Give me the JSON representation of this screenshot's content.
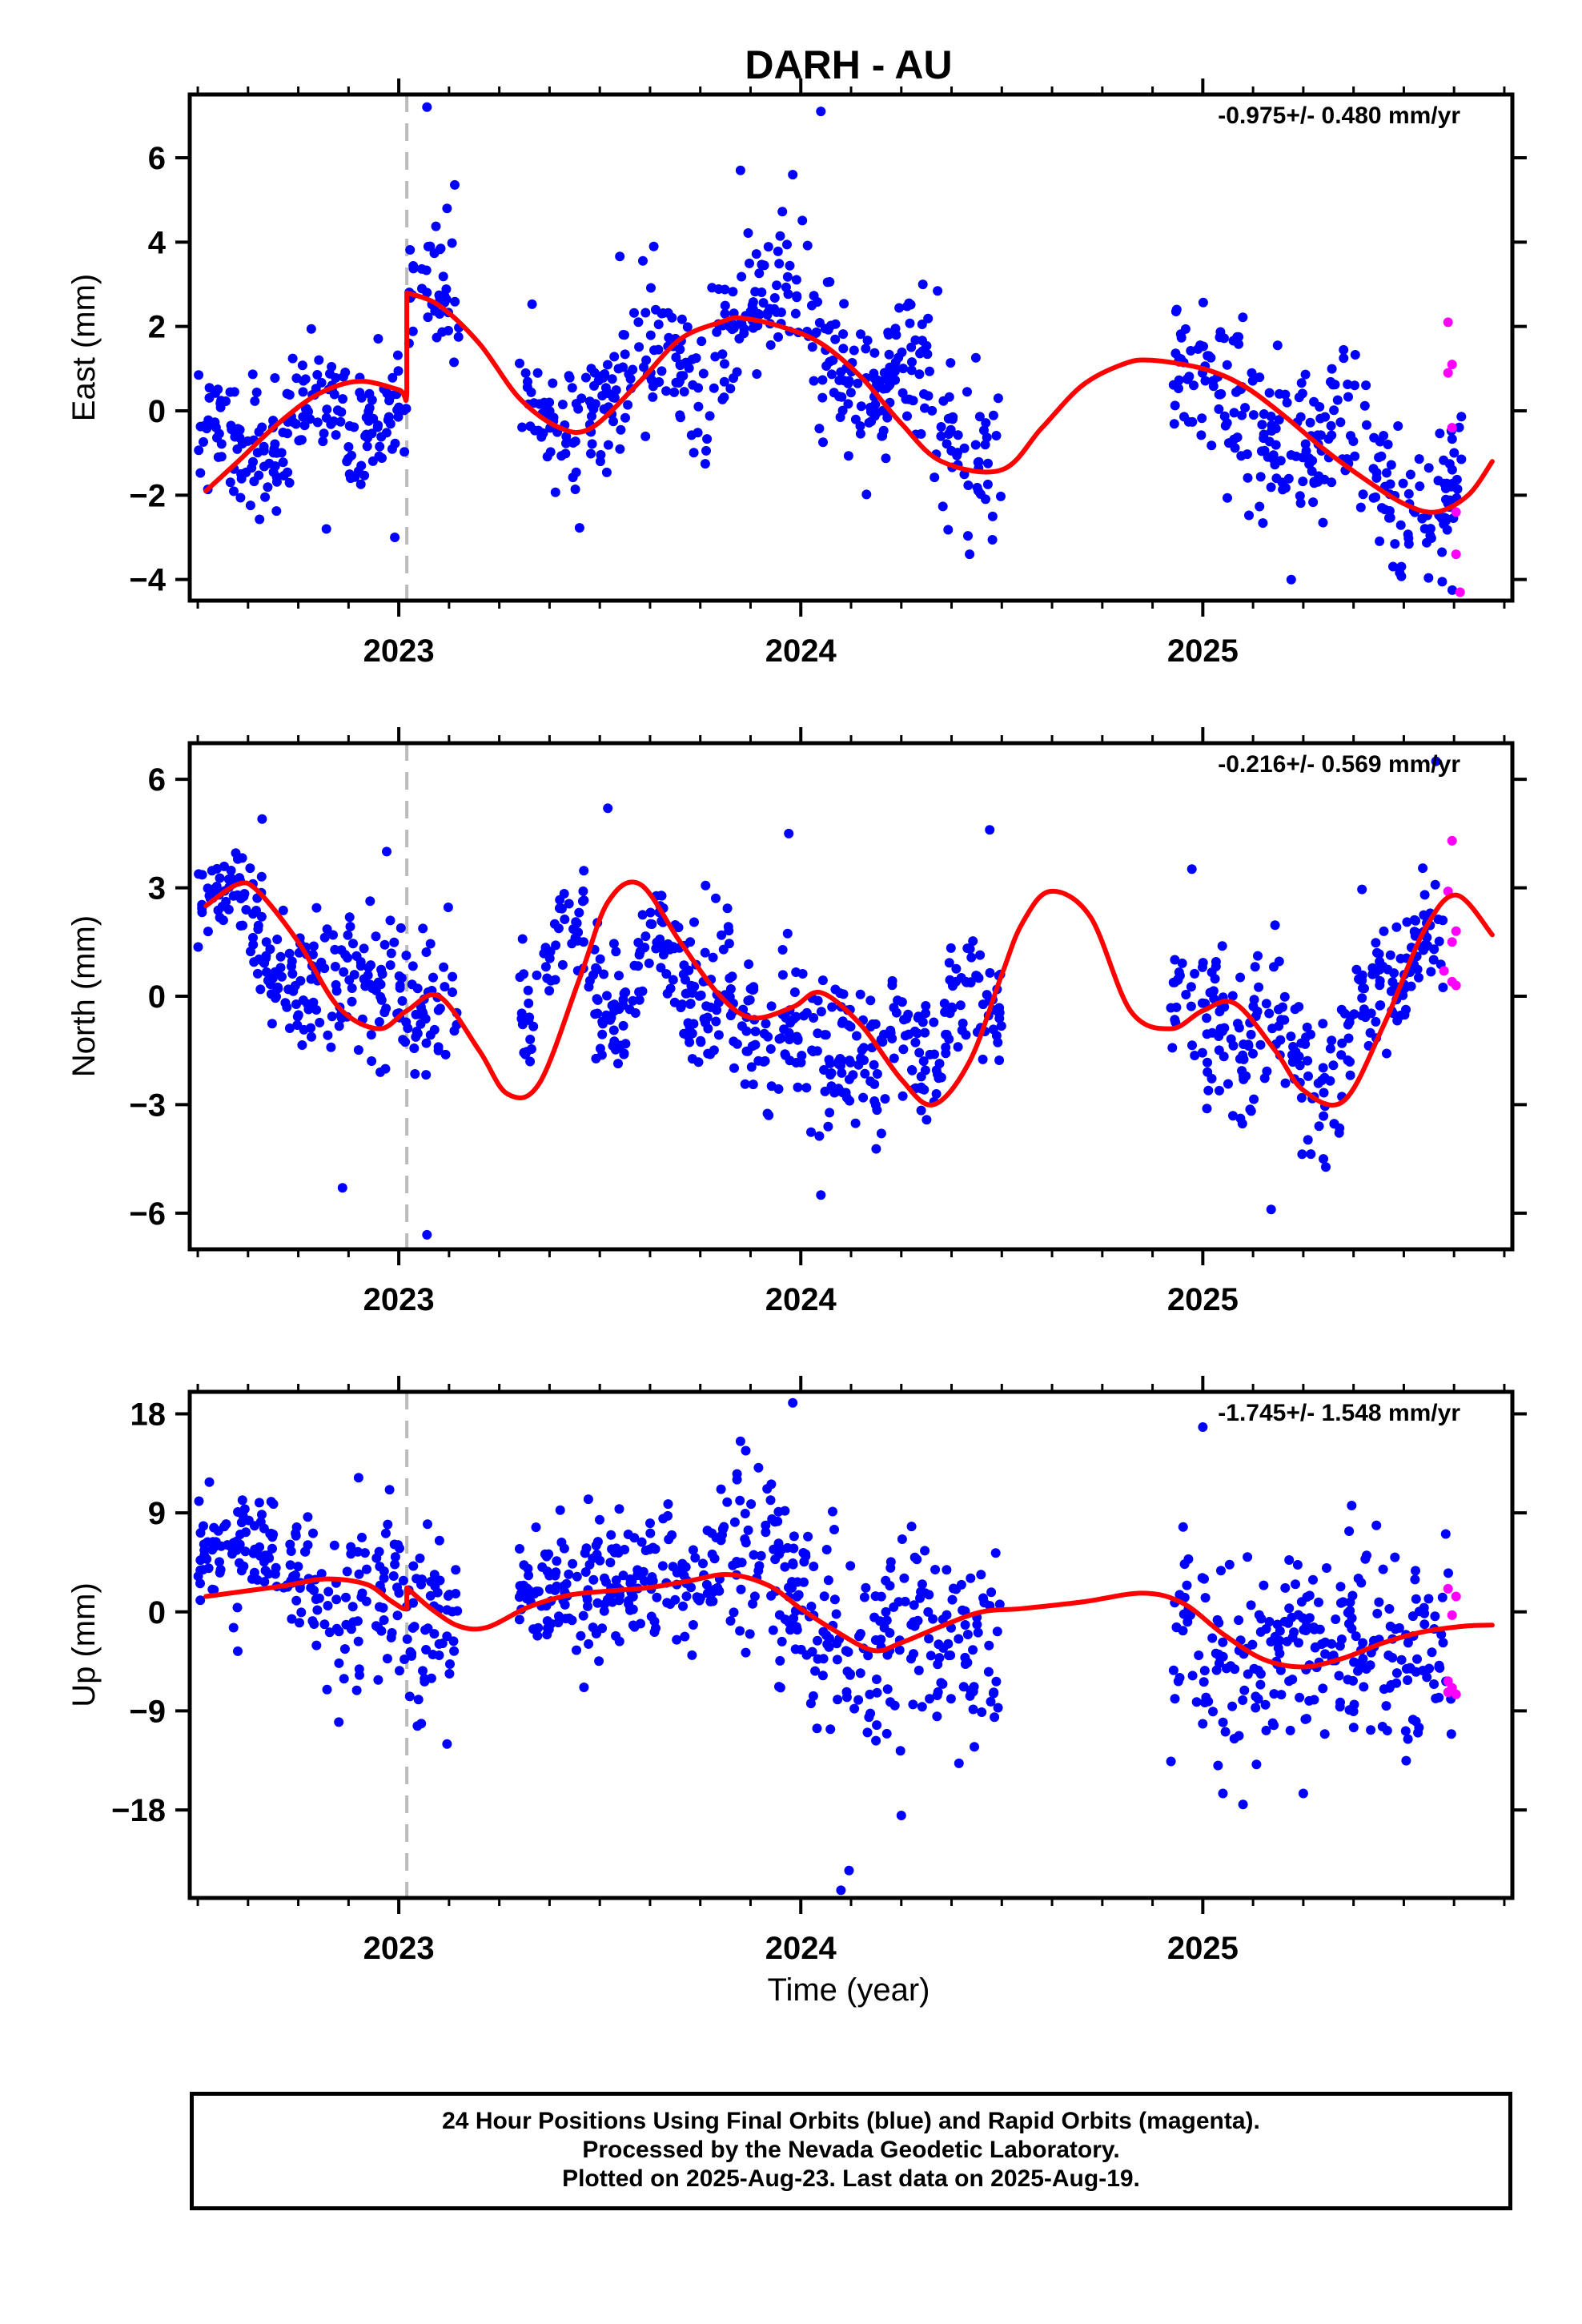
{
  "title": "DARH - AU",
  "colors": {
    "final": "#0000ff",
    "rapid": "#ff00ff",
    "model": "#ff0000",
    "equipment_change": "#bbbbbb"
  },
  "xlabel": "Time (year)",
  "footer": {
    "line1": "24 Hour Positions Using Final Orbits (blue) and Rapid Orbits (magenta).",
    "line2": "Processed by the Nevada Geodetic Laboratory.",
    "line3": "Plotted on 2025-Aug-23. Last data on 2025-Aug-19."
  },
  "chart_data": [
    {
      "type": "scatter",
      "component": "east",
      "ylabel": "East (mm)",
      "rate_label": "-0.975+/- 0.480 mm/yr",
      "xlim": [
        2022.48,
        2025.77
      ],
      "ylim": [
        -4.5,
        7.5
      ],
      "yticks": [
        -4,
        -2,
        0,
        2,
        4,
        6
      ],
      "ytick_labels": [
        "−4",
        "−2",
        "0",
        "2",
        "4",
        "6"
      ],
      "xticks": [
        2023,
        2024,
        2025
      ],
      "xtick_labels": [
        "2023",
        "2024",
        "2025"
      ],
      "equipment_change": 2023.02,
      "model_x": [
        2022.52,
        2022.6,
        2022.7,
        2022.8,
        2022.9,
        2023.0,
        2023.02,
        2023.02,
        2023.1,
        2023.2,
        2023.3,
        2023.4,
        2023.48,
        2023.6,
        2023.7,
        2023.8,
        2023.85,
        2023.95,
        2024.05,
        2024.15,
        2024.25,
        2024.35,
        2024.5,
        2024.6,
        2024.7,
        2024.8,
        2024.87,
        2025.0,
        2025.1,
        2025.2,
        2025.3,
        2025.4,
        2025.5,
        2025.58,
        2025.66,
        2025.72
      ],
      "model_y": [
        -1.9,
        -1.2,
        -0.3,
        0.4,
        0.7,
        0.5,
        0.4,
        2.8,
        2.5,
        1.6,
        0.3,
        -0.4,
        -0.4,
        0.7,
        1.7,
        2.1,
        2.2,
        2.0,
        1.6,
        0.8,
        -0.3,
        -1.2,
        -1.4,
        -0.4,
        0.6,
        1.1,
        1.2,
        1.0,
        0.6,
        -0.1,
        -0.9,
        -1.6,
        -2.2,
        -2.4,
        -2.0,
        -1.2
      ],
      "segments": [
        {
          "x0": 2022.5,
          "x1": 2023.02,
          "amp": 1.2,
          "phase": 0.6,
          "center": -0.4,
          "trend": 2.2,
          "noise": 0.75,
          "n": 190
        },
        {
          "x0": 2023.02,
          "x1": 2023.15,
          "amp": 0.5,
          "phase": 0.0,
          "center": 2.8,
          "trend": -2.5,
          "noise": 1.1,
          "n": 40
        },
        {
          "x0": 2023.3,
          "x1": 2023.92,
          "amp": 1.4,
          "phase": 1.6,
          "center": 0.8,
          "trend": 4.0,
          "noise": 0.85,
          "n": 220
        },
        {
          "x0": 2023.92,
          "x1": 2024.5,
          "amp": 1.6,
          "phase": 0.0,
          "center": 0.6,
          "trend": -5.2,
          "noise": 0.9,
          "n": 210
        },
        {
          "x0": 2024.92,
          "x1": 2025.65,
          "amp": 1.2,
          "phase": 0.4,
          "center": -0.8,
          "trend": -4.2,
          "noise": 0.9,
          "n": 260
        }
      ],
      "outliers": [
        [
          2023.07,
          7.2
        ],
        [
          2024.05,
          7.1
        ],
        [
          2023.12,
          4.8
        ],
        [
          2023.85,
          5.7
        ],
        [
          2023.98,
          5.6
        ],
        [
          2025.22,
          -4.0
        ],
        [
          2024.42,
          -3.4
        ],
        [
          2022.82,
          -2.8
        ],
        [
          2022.99,
          -3.0
        ]
      ],
      "rapid": [
        [
          2025.61,
          2.1
        ],
        [
          2025.62,
          1.1
        ],
        [
          2025.61,
          0.9
        ],
        [
          2025.62,
          -0.4
        ],
        [
          2025.63,
          -2.4
        ],
        [
          2025.63,
          -3.4
        ],
        [
          2025.64,
          -4.3
        ]
      ]
    },
    {
      "type": "scatter",
      "component": "north",
      "ylabel": "North (mm)",
      "rate_label": "-0.216+/- 0.569 mm/yr",
      "xlim": [
        2022.48,
        2025.77
      ],
      "ylim": [
        -7,
        7
      ],
      "yticks": [
        -6,
        -3,
        0,
        3,
        6
      ],
      "ytick_labels": [
        "−6",
        "−3",
        "0",
        "3",
        "6"
      ],
      "xticks": [
        2023,
        2024,
        2025
      ],
      "xtick_labels": [
        "2023",
        "2024",
        "2025"
      ],
      "equipment_change": 2023.02,
      "model_x": [
        2022.52,
        2022.6,
        2022.65,
        2022.75,
        2022.85,
        2022.95,
        2023.02,
        2023.1,
        2023.2,
        2023.27,
        2023.35,
        2023.45,
        2023.52,
        2023.6,
        2023.7,
        2023.8,
        2023.88,
        2023.98,
        2024.05,
        2024.15,
        2024.25,
        2024.33,
        2024.42,
        2024.5,
        2024.55,
        2024.62,
        2024.72,
        2024.82,
        2024.92,
        2025.0,
        2025.08,
        2025.18,
        2025.25,
        2025.35,
        2025.45,
        2025.55,
        2025.63,
        2025.72
      ],
      "model_y": [
        2.5,
        3.1,
        2.9,
        1.5,
        -0.3,
        -0.9,
        -0.4,
        0.0,
        -1.5,
        -2.7,
        -2.4,
        0.5,
        2.6,
        3.1,
        1.5,
        0.0,
        -0.6,
        -0.3,
        0.1,
        -0.8,
        -2.3,
        -3.0,
        -1.8,
        0.6,
        2.0,
        2.9,
        2.2,
        -0.4,
        -0.9,
        -0.4,
        -0.2,
        -1.5,
        -2.6,
        -2.9,
        -0.8,
        1.8,
        2.8,
        1.7
      ],
      "segments": [
        {
          "x0": 2022.5,
          "x1": 2022.62,
          "amp": 0.3,
          "phase": 0.0,
          "center": 2.9,
          "trend": 0.0,
          "noise": 0.6,
          "n": 45
        },
        {
          "x0": 2022.62,
          "x1": 2023.15,
          "amp": 1.0,
          "phase": 1.2,
          "center": 0.4,
          "trend": -3.0,
          "noise": 1.0,
          "n": 200
        },
        {
          "x0": 2023.3,
          "x1": 2023.75,
          "amp": 2.5,
          "phase": 4.5,
          "center": 0.7,
          "trend": 0.0,
          "noise": 0.9,
          "n": 170
        },
        {
          "x0": 2023.75,
          "x1": 2024.18,
          "amp": 1.0,
          "phase": 0.0,
          "center": -1.0,
          "trend": -3.0,
          "noise": 1.1,
          "n": 170
        },
        {
          "x0": 2024.18,
          "x1": 2024.5,
          "amp": 1.5,
          "phase": 5.5,
          "center": -1.0,
          "trend": 8.0,
          "noise": 0.9,
          "n": 120
        },
        {
          "x0": 2024.92,
          "x1": 2025.35,
          "amp": 1.2,
          "phase": 0.0,
          "center": -1.2,
          "trend": -5.0,
          "noise": 1.0,
          "n": 150
        },
        {
          "x0": 2025.35,
          "x1": 2025.6,
          "amp": 1.2,
          "phase": 4.0,
          "center": 0.5,
          "trend": 10.0,
          "noise": 0.9,
          "n": 100
        }
      ],
      "outliers": [
        [
          2022.86,
          -5.3
        ],
        [
          2023.07,
          -6.6
        ],
        [
          2024.05,
          -5.5
        ],
        [
          2025.17,
          -5.9
        ],
        [
          2025.58,
          6.5
        ],
        [
          2023.52,
          5.2
        ],
        [
          2024.47,
          4.6
        ],
        [
          2022.66,
          4.9
        ],
        [
          2023.97,
          4.5
        ],
        [
          2025.3,
          -4.5
        ],
        [
          2022.97,
          4.0
        ]
      ],
      "rapid": [
        [
          2025.62,
          4.3
        ],
        [
          2025.61,
          2.9
        ],
        [
          2025.63,
          1.8
        ],
        [
          2025.62,
          1.5
        ],
        [
          2025.6,
          0.7
        ],
        [
          2025.62,
          0.4
        ],
        [
          2025.63,
          0.3
        ]
      ]
    },
    {
      "type": "scatter",
      "component": "up",
      "ylabel": "Up (mm)",
      "rate_label": "-1.745+/- 1.548 mm/yr",
      "xlim": [
        2022.48,
        2025.77
      ],
      "ylim": [
        -26,
        20
      ],
      "yticks": [
        -18,
        -9,
        0,
        9,
        18
      ],
      "ytick_labels": [
        "−18",
        "−9",
        "0",
        "9",
        "18"
      ],
      "xticks": [
        2023,
        2024,
        2025
      ],
      "xtick_labels": [
        "2023",
        "2024",
        "2025"
      ],
      "equipment_change": 2023.02,
      "model_x": [
        2022.52,
        2022.62,
        2022.72,
        2022.82,
        2022.92,
        2022.98,
        2023.02,
        2023.02,
        2023.08,
        2023.15,
        2023.22,
        2023.32,
        2023.42,
        2023.52,
        2023.62,
        2023.72,
        2023.82,
        2023.92,
        2024.0,
        2024.08,
        2024.18,
        2024.25,
        2024.35,
        2024.45,
        2024.55,
        2024.7,
        2024.85,
        2024.95,
        2025.05,
        2025.15,
        2025.25,
        2025.35,
        2025.45,
        2025.55,
        2025.65,
        2025.72
      ],
      "model_y": [
        1.4,
        1.9,
        2.4,
        3.0,
        2.5,
        1.0,
        0.3,
        2.2,
        0.3,
        -1.3,
        -1.4,
        0.4,
        1.5,
        1.9,
        2.2,
        2.8,
        3.4,
        2.4,
        0.3,
        -1.6,
        -3.5,
        -2.8,
        -1.3,
        0.0,
        0.3,
        0.9,
        1.7,
        0.8,
        -2.0,
        -4.3,
        -5.0,
        -4.2,
        -2.8,
        -1.8,
        -1.3,
        -1.2
      ],
      "segments": [
        {
          "x0": 2022.5,
          "x1": 2022.78,
          "amp": 1.2,
          "phase": 0.0,
          "center": 5.0,
          "trend": -4.0,
          "noise": 2.4,
          "n": 110
        },
        {
          "x0": 2022.78,
          "x1": 2023.15,
          "amp": 1.5,
          "phase": 2.0,
          "center": 0.0,
          "trend": -5.0,
          "noise": 4.5,
          "n": 130
        },
        {
          "x0": 2023.3,
          "x1": 2023.8,
          "amp": 1.5,
          "phase": 0.0,
          "center": 2.5,
          "trend": 6.0,
          "noise": 2.8,
          "n": 200
        },
        {
          "x0": 2023.8,
          "x1": 2024.02,
          "amp": 1.5,
          "phase": 1.0,
          "center": 5.0,
          "trend": -10.0,
          "noise": 4.8,
          "n": 90
        },
        {
          "x0": 2024.02,
          "x1": 2024.5,
          "amp": 1.5,
          "phase": 0.0,
          "center": -2.5,
          "trend": 3.0,
          "noise": 4.2,
          "n": 170
        },
        {
          "x0": 2024.92,
          "x1": 2025.62,
          "amp": 2.0,
          "phase": 0.3,
          "center": -3.5,
          "trend": 2.5,
          "noise": 4.2,
          "n": 260
        }
      ],
      "outliers": [
        [
          2023.98,
          19.0
        ],
        [
          2023.85,
          15.5
        ],
        [
          2024.12,
          -23.5
        ],
        [
          2024.1,
          -25.3
        ],
        [
          2024.25,
          -18.5
        ],
        [
          2025.1,
          -17.5
        ],
        [
          2025.05,
          -16.5
        ],
        [
          2025.25,
          -16.5
        ],
        [
          2025.0,
          16.8
        ],
        [
          2022.9,
          12.2
        ],
        [
          2023.67,
          9.8
        ],
        [
          2023.12,
          -12.0
        ]
      ],
      "rapid": [
        [
          2025.61,
          2.1
        ],
        [
          2025.63,
          1.4
        ],
        [
          2025.62,
          -0.3
        ],
        [
          2025.61,
          -6.3
        ],
        [
          2025.62,
          -6.9
        ],
        [
          2025.61,
          -7.3
        ],
        [
          2025.63,
          -7.5
        ]
      ]
    }
  ]
}
